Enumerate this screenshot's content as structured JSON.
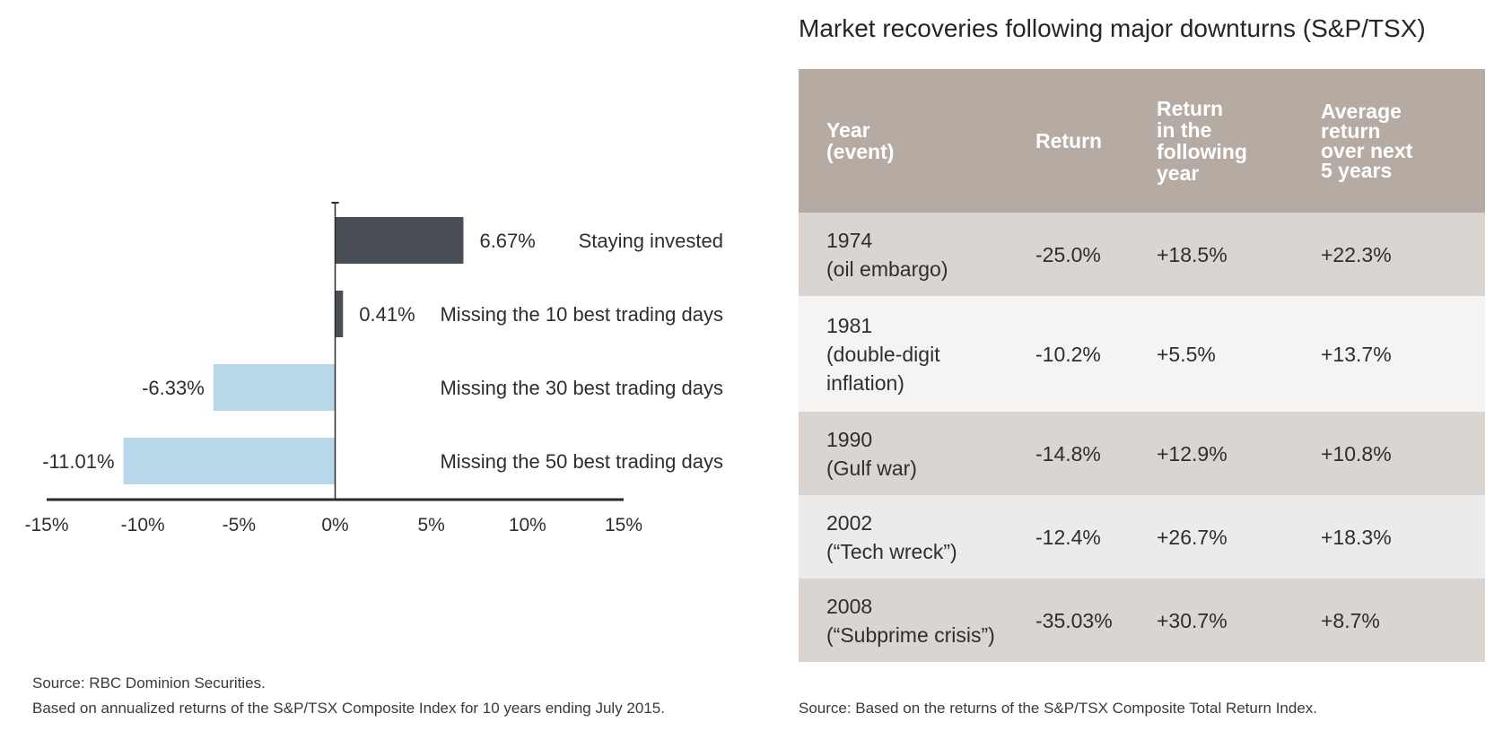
{
  "chart_data": {
    "type": "bar",
    "orientation": "horizontal",
    "title": "",
    "xlabel": "",
    "ylabel": "",
    "xlim": [
      -15,
      15
    ],
    "x_ticks": [
      -15,
      -10,
      -5,
      0,
      5,
      10,
      15
    ],
    "x_tick_labels": [
      "-15%",
      "-10%",
      "-5%",
      "0%",
      "5%",
      "10%",
      "15%"
    ],
    "grid": false,
    "categories": [
      "Staying invested",
      "Missing the 10 best trading days",
      "Missing the 30 best trading days",
      "Missing the 50 best trading days"
    ],
    "values": [
      6.67,
      0.41,
      -6.33,
      -11.01
    ],
    "value_labels": [
      "6.67%",
      "0.41%",
      "-6.33%",
      "-11.01%"
    ],
    "colors": {
      "positive": "#4a4f56",
      "negative": "#b8d8ea",
      "axis": "#2a2a2a"
    }
  },
  "left_source": {
    "line1": "Source: RBC Dominion Securities.",
    "line2": "Based on annualized returns of the S&P/TSX Composite Index for 10 years ending July 2015."
  },
  "table": {
    "title": "Market recoveries following major downturns (S&P/TSX)",
    "headers": [
      [
        "Year",
        "(event)"
      ],
      [
        "Return"
      ],
      [
        "Return",
        "in the",
        "following",
        "year"
      ],
      [
        "Average",
        "return",
        "over next",
        "5 years"
      ]
    ],
    "rows": [
      {
        "year": "1974",
        "event": [
          "(oil embargo)"
        ],
        "return": "-25.0%",
        "following_year": "+18.5%",
        "avg_5yr": "+22.3%"
      },
      {
        "year": "1981",
        "event": [
          "(double-digit",
          "inflation)"
        ],
        "return": "-10.2%",
        "following_year": "+5.5%",
        "avg_5yr": "+13.7%"
      },
      {
        "year": "1990",
        "event": [
          "(Gulf war)"
        ],
        "return": "-14.8%",
        "following_year": "+12.9%",
        "avg_5yr": "+10.8%"
      },
      {
        "year": "2002",
        "event": [
          "(“Tech wreck”)"
        ],
        "return": "-12.4%",
        "following_year": "+26.7%",
        "avg_5yr": "+18.3%"
      },
      {
        "year": "2008",
        "event": [
          "(“Subprime crisis”)"
        ],
        "return": "-35.03%",
        "following_year": "+30.7%",
        "avg_5yr": "+8.7%"
      }
    ],
    "colors": {
      "header_bg": "#b5aba3",
      "row_dark": "#dad5d0",
      "row_light": "#f5f4f2",
      "row_mid": "#edebe9"
    },
    "source": "Source: Based on the returns of the S&P/TSX Composite Total Return Index."
  }
}
